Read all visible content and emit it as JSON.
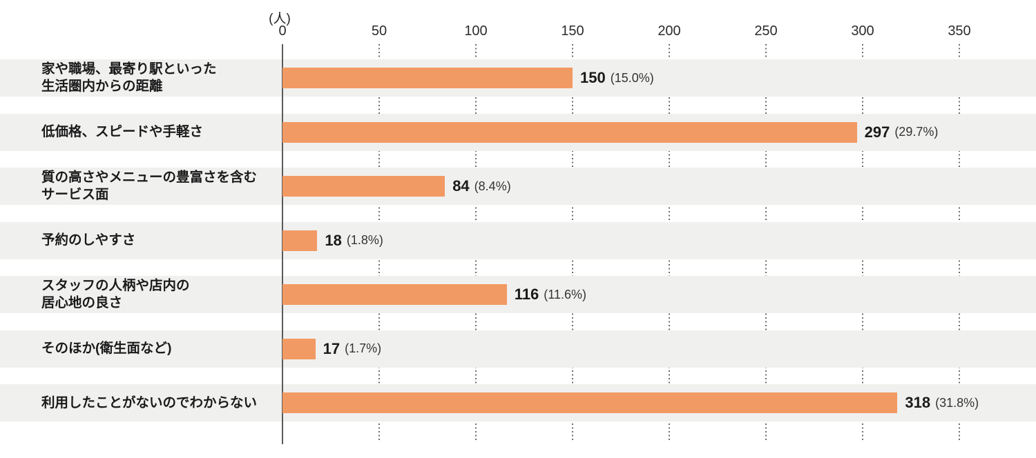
{
  "chart_data": {
    "type": "bar",
    "orientation": "horizontal",
    "title": "",
    "unit_label": "(人)",
    "xlabel": "",
    "ylabel": "",
    "x_ticks": [
      0,
      50,
      100,
      150,
      200,
      250,
      300,
      350
    ],
    "xlim": [
      0,
      390
    ],
    "grid": "dotted-vertical-between-rows",
    "legend": "none",
    "categories": [
      "家や職場、最寄り駅といった生活圏内からの距離",
      "低価格、スピードや手軽さ",
      "質の高さやメニューの豊富さを含むサービス面",
      "予約のしやすさ",
      "スタッフの人柄や店内の居心地の良さ",
      "そのほか(衛生面など)",
      "利用したことがないのでわからない"
    ],
    "values": [
      150,
      297,
      84,
      18,
      116,
      17,
      318
    ],
    "rows": [
      {
        "label_lines": [
          "家や職場、最寄り駅といった",
          "生活圏内からの距離"
        ],
        "value": 150,
        "value_label": "150",
        "percent_label": "(15.0%)"
      },
      {
        "label_lines": [
          "低価格、スピードや手軽さ"
        ],
        "value": 297,
        "value_label": "297",
        "percent_label": "(29.7%)"
      },
      {
        "label_lines": [
          "質の高さやメニューの豊富さを含む",
          "サービス面"
        ],
        "value": 84,
        "value_label": "84",
        "percent_label": "(8.4%)"
      },
      {
        "label_lines": [
          "予約のしやすさ"
        ],
        "value": 18,
        "value_label": "18",
        "percent_label": "(1.8%)"
      },
      {
        "label_lines": [
          "スタッフの人柄や店内の",
          "居心地の良さ"
        ],
        "value": 116,
        "value_label": "116",
        "percent_label": "(11.6%)"
      },
      {
        "label_lines": [
          "そのほか(衛生面など)"
        ],
        "value": 17,
        "value_label": "17",
        "percent_label": "(1.7%)"
      },
      {
        "label_lines": [
          "利用したことがないのでわからない"
        ],
        "value": 318,
        "value_label": "318",
        "percent_label": "(31.8%)"
      }
    ],
    "colors": {
      "bar": "#F29A63",
      "row_background": "#F0F0EF",
      "axis_line": "#5a5a5a",
      "grid_dots": "#6b6b6b",
      "value_text": "#1a1a1a",
      "label_text": "#1a1a1a",
      "tick_text": "#2b2b2b",
      "page_background": "#FFFFFF"
    }
  }
}
